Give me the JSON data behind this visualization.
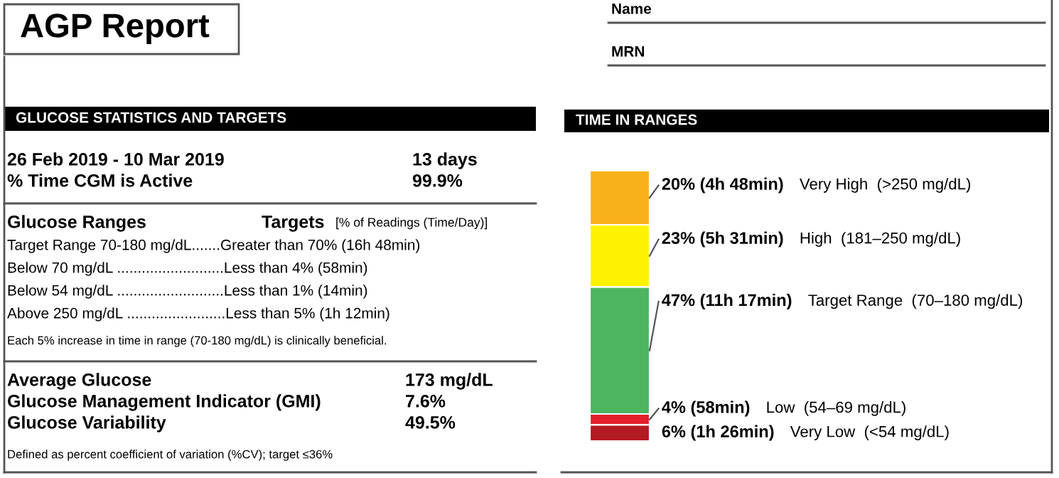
{
  "chart_data": [
    {
      "type": "other",
      "title": "GLUCOSE STATISTICS AND TARGETS",
      "annotations": [
        "AGP Report",
        "26 Feb 2019 - 10 Mar 2019",
        "13 days",
        "% Time CGM is Active",
        "99.9%",
        "Glucose Ranges",
        "Targets",
        "[% of Readings (Time/Day)]",
        "Target Range 70-180 mg/dL.......Greater than 70% (16h 48min)",
        "Below 70 mg/dL ..........................Less than 4% (58min)",
        "Below 54 mg/dL ..........................Less than 1% (14min)",
        "Above 250 mg/dL ........................Less than 5% (1h 12min)",
        "Each 5% increase in time in range (70-180 mg/dL) is clinically beneficial.",
        "Average Glucose",
        "173 mg/dL",
        "Glucose Management Indicator (GMI)",
        "7.6%",
        "Glucose Variability",
        "49.5%",
        "Defined as percent coefficient of variation (%CV); target ≤36%"
      ]
    },
    {
      "type": "bar",
      "title": "TIME IN RANGES",
      "stacked": true,
      "annotations": [
        "Name",
        "MRN"
      ],
      "categories": [
        null
      ],
      "series": [
        {
          "name": "Very Low  (<54 mg/dL)",
          "color": "#b31b23",
          "values": [
            6
          ],
          "value_labels": [
            "6% (1h 26min)"
          ]
        },
        {
          "name": "Low  (54–69 mg/dL)",
          "color": "#e3202a",
          "values": [
            4
          ],
          "value_labels": [
            "4% (58min)"
          ]
        },
        {
          "name": "Target Range  (70–180 mg/dL)",
          "color": "#4db560",
          "values": [
            47
          ],
          "value_labels": [
            "47% (11h 17min)"
          ]
        },
        {
          "name": "High  (181–250 mg/dL)",
          "color": "#fff200",
          "values": [
            23
          ],
          "value_labels": [
            "23% (5h 31min)"
          ]
        },
        {
          "name": "Very High  (>250 mg/dL)",
          "color": "#f9b11b",
          "values": [
            20
          ],
          "value_labels": [
            "20% (4h 48min)"
          ]
        }
      ]
    }
  ]
}
